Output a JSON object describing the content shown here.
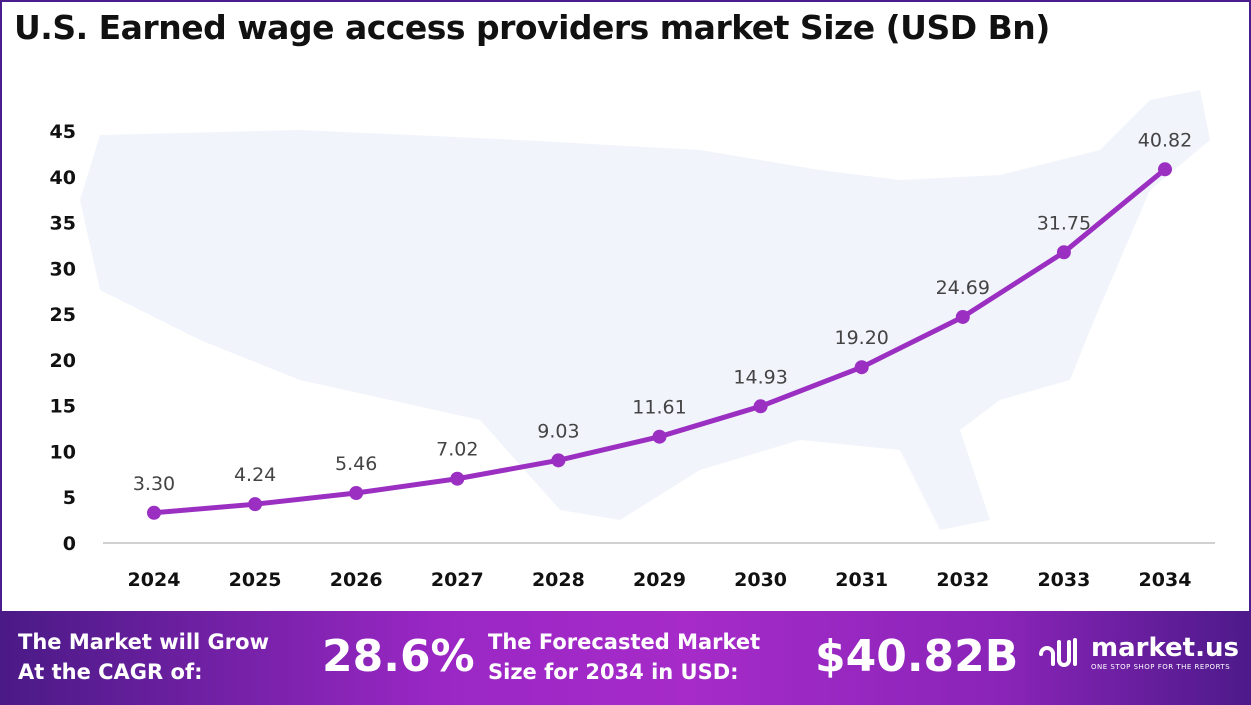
{
  "chart_data": {
    "type": "line",
    "title": "U.S. Earned wage access providers market Size (USD Bn)",
    "categories": [
      "2024",
      "2025",
      "2026",
      "2027",
      "2028",
      "2029",
      "2030",
      "2031",
      "2032",
      "2033",
      "2034"
    ],
    "values": [
      3.3,
      4.24,
      5.46,
      7.02,
      9.03,
      11.61,
      14.93,
      19.2,
      24.69,
      31.75,
      40.82
    ],
    "data_labels": [
      "3.30",
      "4.24",
      "5.46",
      "7.02",
      "9.03",
      "11.61",
      "14.93",
      "19.20",
      "24.69",
      "31.75",
      "40.82"
    ],
    "yticks": [
      "0",
      "5",
      "10",
      "15",
      "20",
      "25",
      "30",
      "35",
      "40",
      "45"
    ],
    "ylim": [
      0,
      45
    ],
    "xlabel": "",
    "ylabel": "",
    "grid": false,
    "line_color": "#9b2fc2"
  },
  "banner": {
    "cagr_label": [
      "The Market will Grow",
      "At the CAGR of:"
    ],
    "cagr_value": "28.6%",
    "forecast_label": [
      "The Forecasted Market",
      "Size for 2034 in USD:"
    ],
    "forecast_value": "$40.82B",
    "logo_name": "market.us",
    "logo_tagline": "ONE STOP SHOP FOR THE REPORTS"
  }
}
